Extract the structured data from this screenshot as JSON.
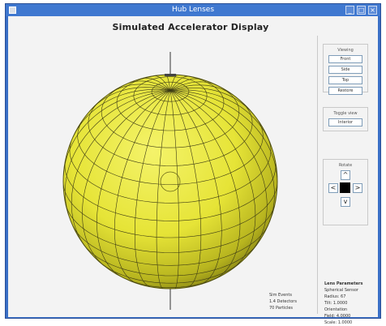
{
  "window": {
    "title": "Hub Lenses",
    "icon": "app-icon",
    "controls": [
      {
        "name": "minimize-button",
        "glyph": "_"
      },
      {
        "name": "maximize-button",
        "glyph": "□"
      },
      {
        "name": "close-button",
        "glyph": "×"
      }
    ]
  },
  "header": {
    "title": "Simulated Accelerator Display"
  },
  "view_group": {
    "label": "Viewing",
    "buttons": [
      "Front",
      "Side",
      "Top",
      "Restore"
    ]
  },
  "toggle_group": {
    "label": "Toggle view",
    "buttons": [
      "Interior"
    ]
  },
  "rotate_group": {
    "label": "Rotate",
    "up": "^",
    "down": "v",
    "left": "<",
    "right": ">"
  },
  "info_left": [
    "Sim Events",
    "1.4 Detectors",
    "70 Particles"
  ],
  "info_right": {
    "heading": "Lens Parameters",
    "lines": [
      "Spherical Sensor",
      "Radius: 67",
      "Tilt: 1.0000",
      "Orientation",
      "Field: 4.0000",
      "Scale: 1.0000"
    ]
  },
  "colors": {
    "sphere": "#e6e437",
    "sphere_shadow": "#7d7a12",
    "grid": "#3d3b15",
    "titlebar": "#3f78d0",
    "background": "#f3f3f3"
  }
}
